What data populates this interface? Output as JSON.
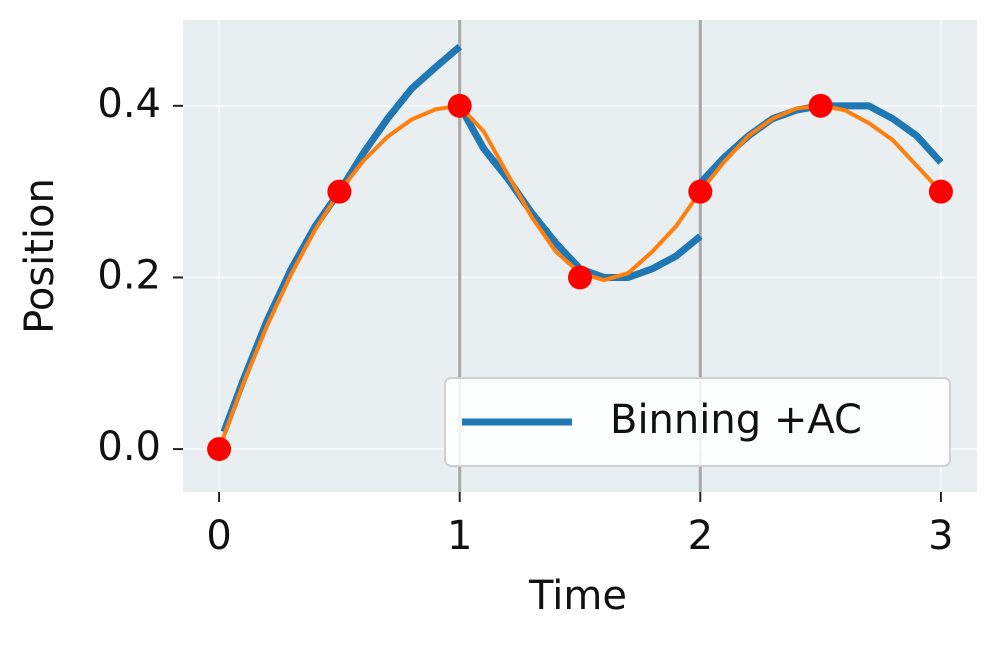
{
  "chart_data": {
    "type": "line",
    "xlabel": "Time",
    "ylabel": "Position",
    "xlim": [
      -0.15,
      3.15
    ],
    "ylim": [
      -0.05,
      0.5
    ],
    "xticks": [
      0,
      1,
      2,
      3
    ],
    "yticks": [
      {
        "value": 0,
        "label": "0.0"
      },
      0.2,
      0.4
    ],
    "grid": true,
    "vlines": [
      1,
      2
    ],
    "legend": "lower right",
    "series": [
      {
        "name": "Binning +AC",
        "type": "line",
        "color": "#1f77b4",
        "x": [
          0.02,
          0.1,
          0.2,
          0.3,
          0.4,
          0.5,
          0.6,
          0.7,
          0.8,
          0.9,
          1.0,
          1.0,
          1.0,
          1.1,
          1.2,
          1.3,
          1.4,
          1.5,
          1.6,
          1.7,
          1.8,
          1.9,
          2.0,
          2.0,
          2.0,
          2.1,
          2.2,
          2.3,
          2.4,
          2.5,
          2.6,
          2.7,
          2.8,
          2.9,
          3.0
        ],
        "values": [
          0.02,
          0.08,
          0.15,
          0.21,
          0.26,
          0.3,
          0.345,
          0.385,
          0.42,
          0.445,
          0.469,
          null,
          0.4,
          0.35,
          0.315,
          0.275,
          0.24,
          0.21,
          0.2,
          0.2,
          0.21,
          0.225,
          0.248,
          null,
          0.31,
          0.34,
          0.365,
          0.385,
          0.395,
          0.4,
          0.4,
          0.4,
          0.385,
          0.365,
          0.334
        ]
      },
      {
        "type": "line",
        "color": "#ff7f0e",
        "x": [
          0,
          0.1,
          0.2,
          0.3,
          0.4,
          0.5,
          0.6,
          0.7,
          0.8,
          0.9,
          1.0,
          1.1,
          1.2,
          1.3,
          1.4,
          1.5,
          1.6,
          1.7,
          1.8,
          1.9,
          2.0,
          2.1,
          2.2,
          2.3,
          2.4,
          2.5,
          2.6,
          2.7,
          2.8,
          2.9,
          3.0
        ],
        "values": [
          0,
          0.076,
          0.144,
          0.204,
          0.256,
          0.3,
          0.336,
          0.364,
          0.384,
          0.396,
          0.4,
          0.37,
          0.32,
          0.27,
          0.23,
          0.205,
          0.197,
          0.205,
          0.23,
          0.26,
          0.3,
          0.335,
          0.365,
          0.385,
          0.397,
          0.4,
          0.395,
          0.38,
          0.36,
          0.33,
          0.3
        ]
      },
      {
        "type": "scatter",
        "color": "#ff0000",
        "x": [
          0,
          0.5,
          1,
          1.5,
          2,
          2.5,
          3
        ],
        "values": [
          0,
          0.3,
          0.4,
          0.2,
          0.3,
          0.4,
          0.3
        ]
      }
    ]
  }
}
